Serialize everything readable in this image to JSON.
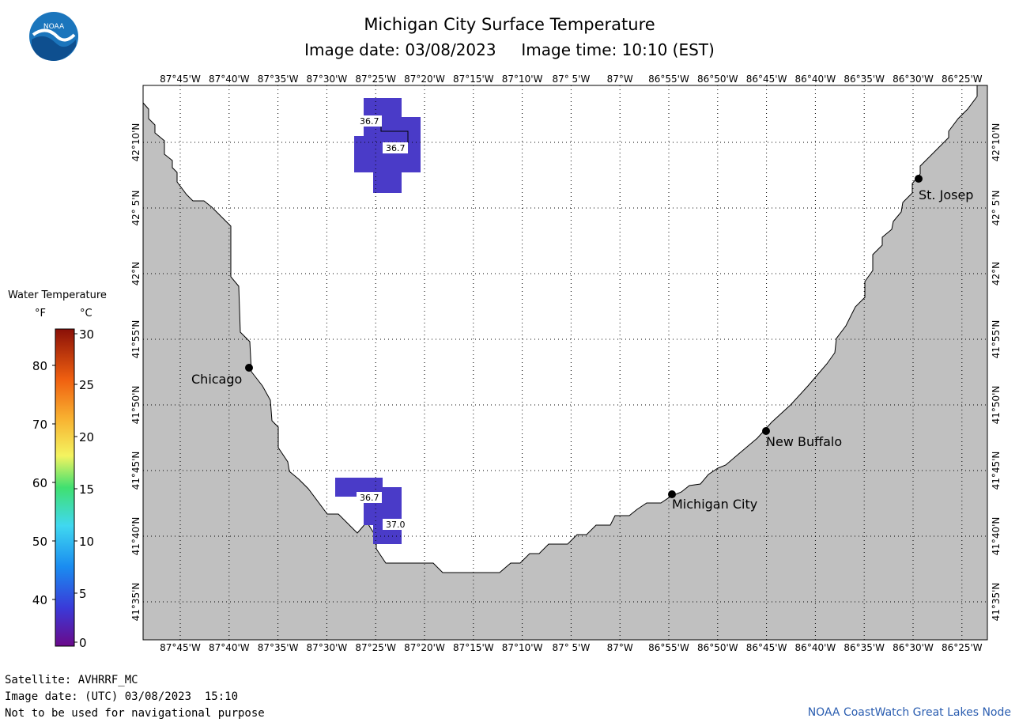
{
  "header": {
    "title": "Michigan City Surface Temperature",
    "image_date": "Image date: 03/08/2023",
    "image_time": "Image time: 10:10 (EST)",
    "logo_text": "NOAA"
  },
  "legend": {
    "title": "Water Temperature",
    "unit_f": "°F",
    "unit_c": "°C",
    "f_ticks": [
      "80",
      "70",
      "60",
      "50",
      "40"
    ],
    "c_ticks": [
      "30",
      "25",
      "20",
      "15",
      "10",
      "5",
      "0"
    ]
  },
  "map": {
    "longitude_labels": [
      "87°45'W",
      "87°40'W",
      "87°35'W",
      "87°30'W",
      "87°25'W",
      "87°20'W",
      "87°15'W",
      "87°10'W",
      "87° 5'W",
      "87°W",
      "86°55'W",
      "86°50'W",
      "86°45'W",
      "86°40'W",
      "86°35'W",
      "86°30'W",
      "86°25'W"
    ],
    "latitude_labels": [
      "42°10'N",
      "42° 5'N",
      "42°N",
      "41°55'N",
      "41°50'N",
      "41°45'N",
      "41°40'N",
      "41°35'N"
    ],
    "cities": [
      "St. Josep",
      "Chicago",
      "New Buffalo",
      "Michigan City"
    ],
    "temperature_labels": [
      "36.7",
      "36.7",
      "36.7",
      "37.0"
    ],
    "colors": {
      "land": "#c0c0c0",
      "water": "#ffffff",
      "sst_cell": "#4a3bc8",
      "grid": "#000000"
    }
  },
  "footer": {
    "satellite": "Satellite: AVHRRF_MC",
    "utc_date": "Image date: (UTC) 03/08/2023  15:10",
    "disclaimer": "Not to be used for navigational purpose",
    "credit": "NOAA CoastWatch Great Lakes Node"
  }
}
